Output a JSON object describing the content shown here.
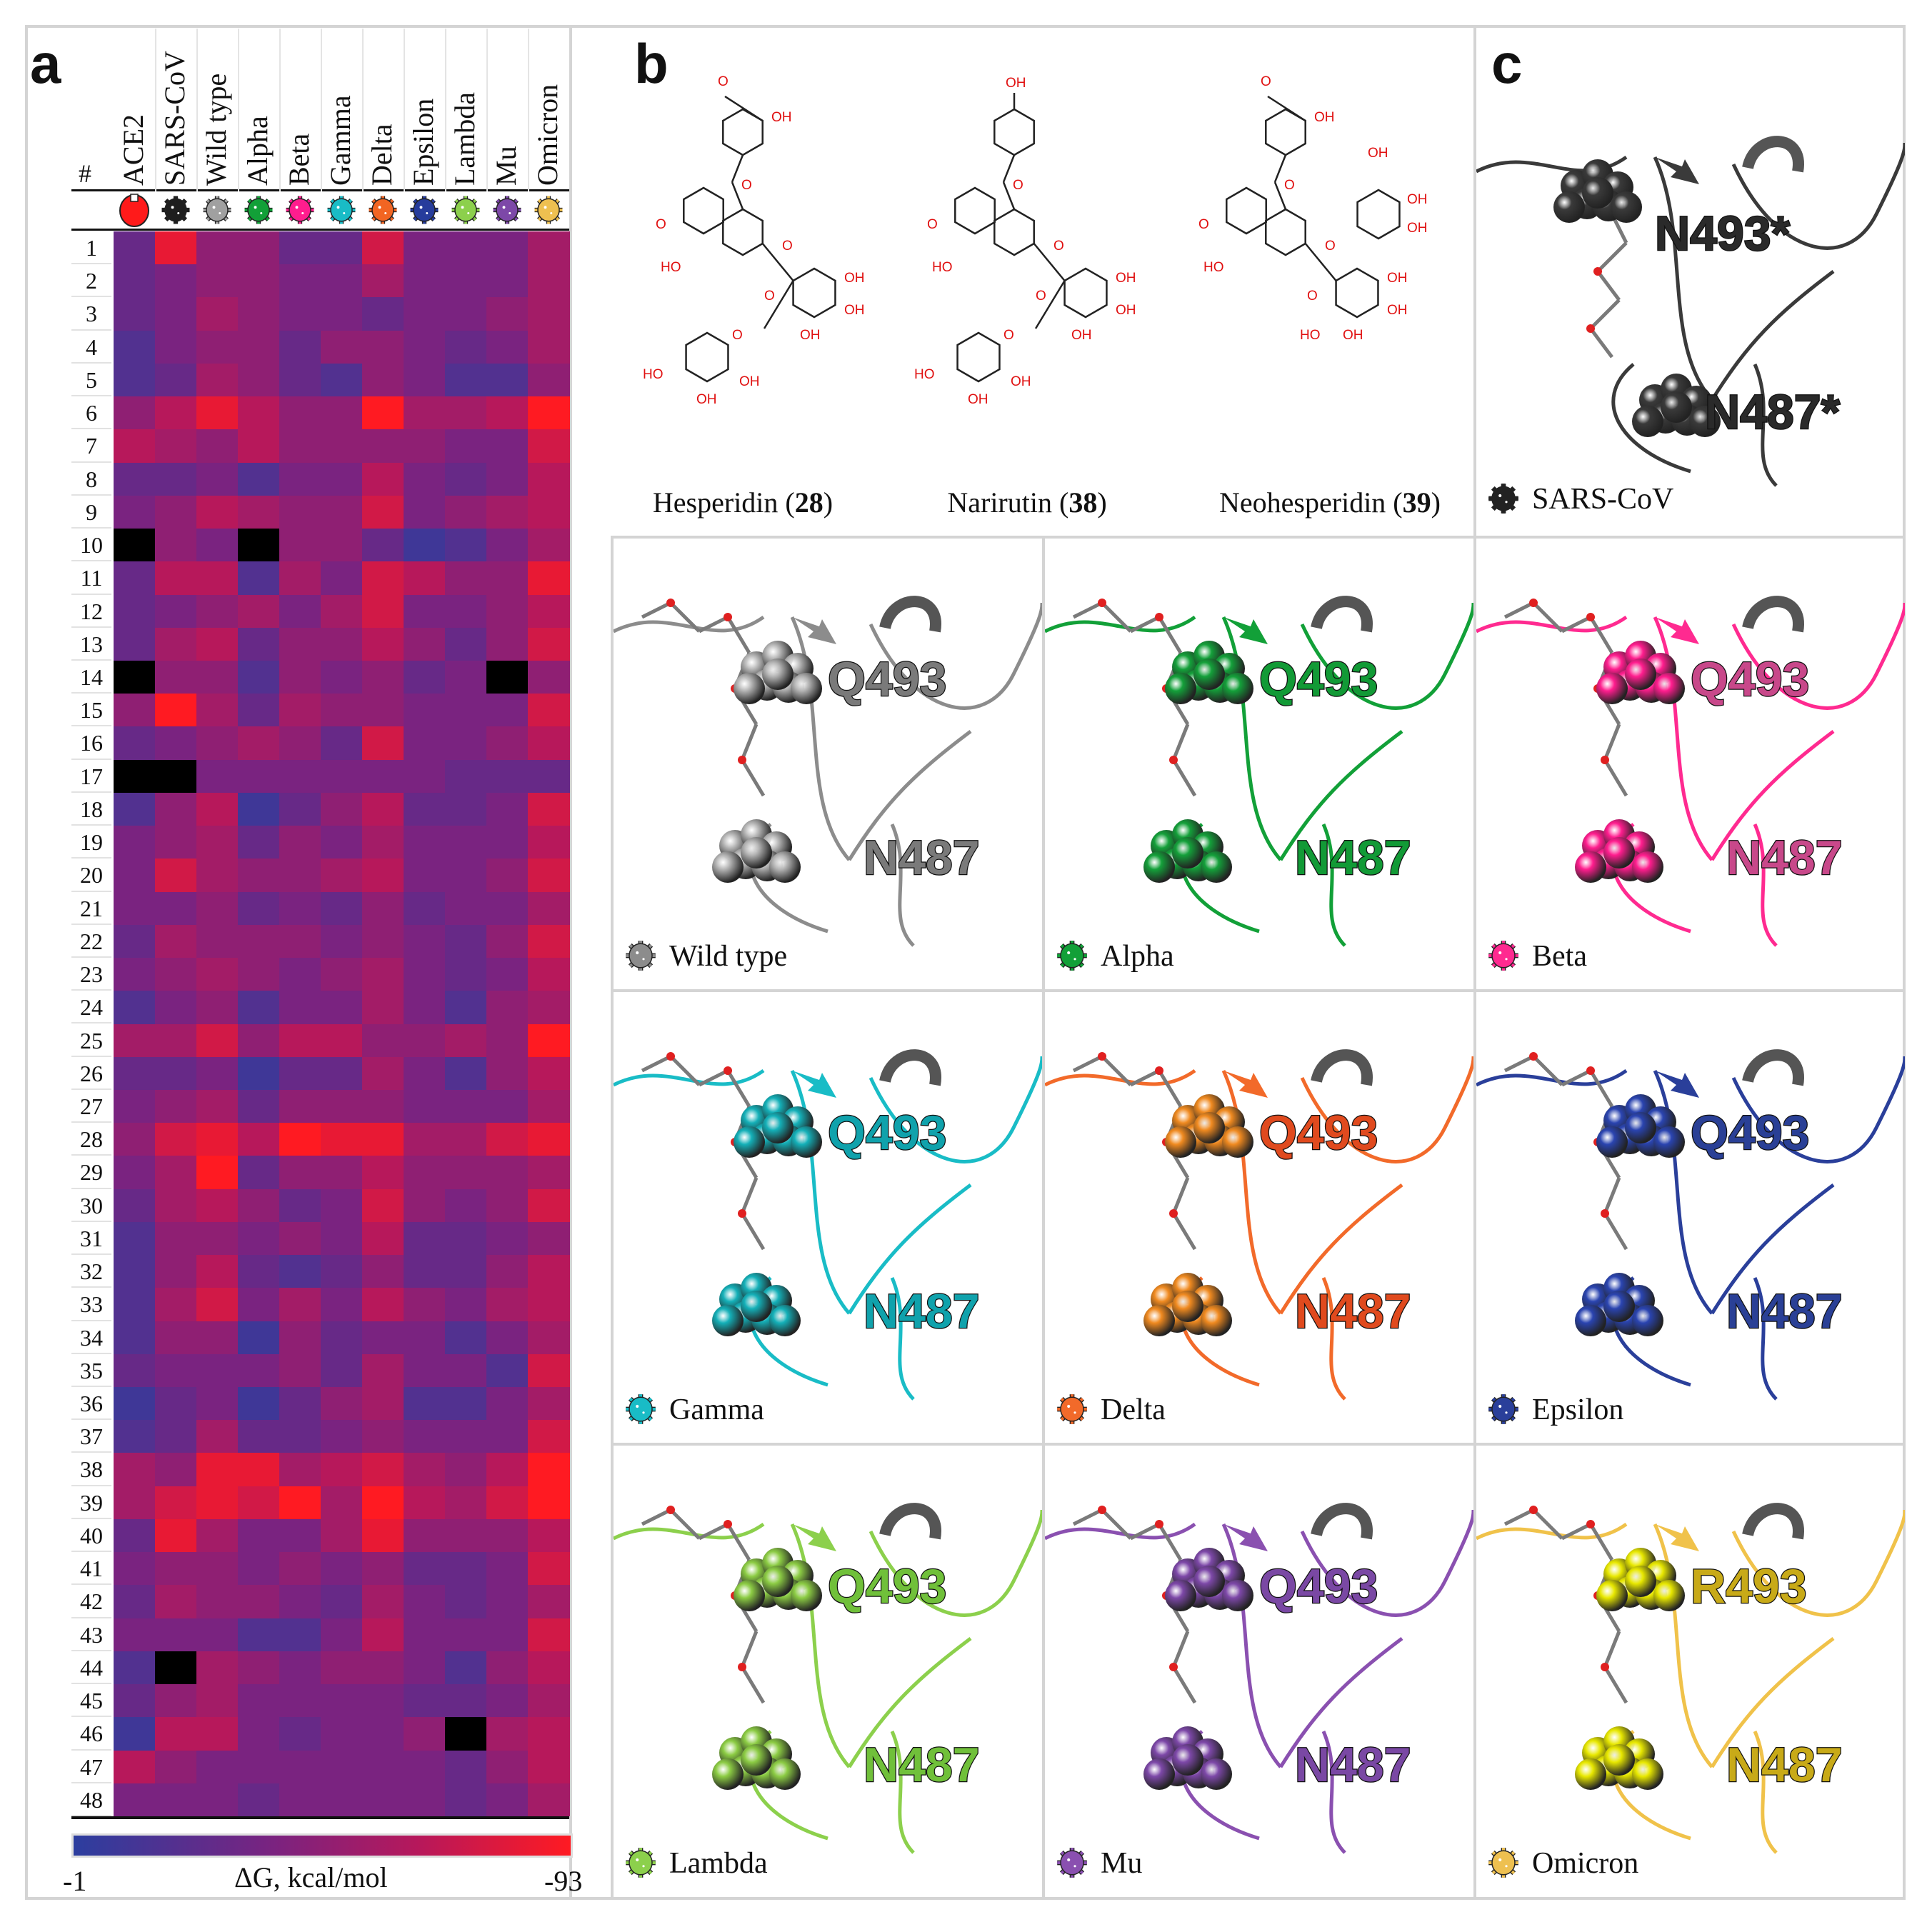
{
  "panel_letters": {
    "a": "a",
    "b": "b",
    "c": "c"
  },
  "chart_data": {
    "type": "heatmap",
    "title": "",
    "row_header": "#",
    "columns": [
      {
        "name": "ACE2",
        "color": "#ff1a1a",
        "icon": "receptor-icon"
      },
      {
        "name": "SARS-CoV",
        "color": "#1e1e1e",
        "icon": "virus-icon"
      },
      {
        "name": "Wild type",
        "color": "#a0a0a0",
        "icon": "virus-icon"
      },
      {
        "name": "Alpha",
        "color": "#12a038",
        "icon": "virus-icon"
      },
      {
        "name": "Beta",
        "color": "#ff1d8e",
        "icon": "virus-icon"
      },
      {
        "name": "Gamma",
        "color": "#19bcc6",
        "icon": "virus-icon"
      },
      {
        "name": "Delta",
        "color": "#f26522",
        "icon": "virus-icon"
      },
      {
        "name": "Epsilon",
        "color": "#263c9c",
        "icon": "virus-icon"
      },
      {
        "name": "Lambda",
        "color": "#8cd04c",
        "icon": "virus-icon"
      },
      {
        "name": "Mu",
        "color": "#7d48a8",
        "icon": "virus-icon"
      },
      {
        "name": "Omicron",
        "color": "#eec050",
        "icon": "virus-icon"
      }
    ],
    "rows": [
      "1",
      "2",
      "3",
      "4",
      "5",
      "6",
      "7",
      "8",
      "9",
      "10",
      "11",
      "12",
      "13",
      "14",
      "15",
      "16",
      "17",
      "18",
      "19",
      "20",
      "21",
      "22",
      "23",
      "24",
      "25",
      "26",
      "27",
      "28",
      "29",
      "30",
      "31",
      "32",
      "33",
      "34",
      "35",
      "36",
      "37",
      "38",
      "39",
      "40",
      "41",
      "42",
      "43",
      "44",
      "45",
      "46",
      "47",
      "48"
    ],
    "values": [
      [
        -29,
        -84,
        -47,
        -47,
        -29,
        -29,
        -75,
        -38,
        -38,
        -38,
        -56
      ],
      [
        -29,
        -38,
        -47,
        -47,
        -38,
        -38,
        -56,
        -38,
        -38,
        -38,
        -56
      ],
      [
        -29,
        -38,
        -56,
        -47,
        -38,
        -38,
        -29,
        -38,
        -38,
        -47,
        -56
      ],
      [
        -19,
        -38,
        -47,
        -47,
        -29,
        -47,
        -47,
        -38,
        -29,
        -38,
        -56
      ],
      [
        -19,
        -29,
        -56,
        -47,
        -29,
        -19,
        -47,
        -38,
        -19,
        -19,
        -47
      ],
      [
        -47,
        -65,
        -84,
        -65,
        -47,
        -47,
        -93,
        -56,
        -56,
        -65,
        -93
      ],
      [
        -65,
        -56,
        -47,
        -65,
        -47,
        -47,
        -47,
        -47,
        -38,
        -38,
        -75
      ],
      [
        -29,
        -29,
        -38,
        -19,
        -38,
        -38,
        -65,
        -38,
        -29,
        -38,
        -65
      ],
      [
        -38,
        -47,
        -65,
        -56,
        -47,
        -47,
        -75,
        -38,
        -47,
        -56,
        -65
      ],
      [
        null,
        -47,
        -38,
        null,
        -47,
        -47,
        -29,
        -10,
        -19,
        -38,
        -56
      ],
      [
        -29,
        -65,
        -65,
        -19,
        -56,
        -38,
        -75,
        -65,
        -47,
        -47,
        -84
      ],
      [
        -29,
        -38,
        -47,
        -56,
        -38,
        -56,
        -75,
        -38,
        -38,
        -47,
        -65
      ],
      [
        -29,
        -56,
        -65,
        -29,
        -47,
        -47,
        -65,
        -47,
        -29,
        -47,
        -75
      ],
      [
        null,
        -47,
        -47,
        -19,
        -47,
        -38,
        -47,
        -29,
        -38,
        null,
        -47
      ],
      [
        -47,
        -93,
        -56,
        -29,
        -56,
        -47,
        -47,
        -38,
        -38,
        -38,
        -75
      ],
      [
        -29,
        -38,
        -47,
        -56,
        -47,
        -29,
        -75,
        -38,
        -38,
        -47,
        -65
      ],
      [
        null,
        null,
        -38,
        -38,
        -38,
        -38,
        -38,
        -38,
        -29,
        -29,
        -29
      ],
      [
        -19,
        -47,
        -65,
        -10,
        -29,
        -47,
        -65,
        -29,
        -29,
        -38,
        -75
      ],
      [
        -38,
        -47,
        -56,
        -29,
        -47,
        -38,
        -56,
        -38,
        -38,
        -38,
        -65
      ],
      [
        -38,
        -75,
        -56,
        -47,
        -47,
        -56,
        -65,
        -38,
        -38,
        -47,
        -75
      ],
      [
        -38,
        -38,
        -47,
        -29,
        -38,
        -29,
        -47,
        -29,
        -38,
        -38,
        -56
      ],
      [
        -29,
        -56,
        -47,
        -47,
        -47,
        -38,
        -47,
        -38,
        -29,
        -47,
        -75
      ],
      [
        -38,
        -47,
        -56,
        -47,
        -38,
        -47,
        -56,
        -38,
        -29,
        -38,
        -65
      ],
      [
        -19,
        -38,
        -47,
        -19,
        -38,
        -38,
        -56,
        -38,
        -19,
        -47,
        -56
      ],
      [
        -56,
        -56,
        -75,
        -47,
        -65,
        -65,
        -47,
        -47,
        -56,
        -47,
        -93
      ],
      [
        -29,
        -29,
        -38,
        -10,
        -29,
        -29,
        -56,
        -38,
        -19,
        -47,
        -65
      ],
      [
        -38,
        -47,
        -56,
        -29,
        -47,
        -47,
        -47,
        -38,
        -38,
        -38,
        -56
      ],
      [
        -47,
        -75,
        -84,
        -65,
        -93,
        -84,
        -84,
        -56,
        -56,
        -75,
        -84
      ],
      [
        -38,
        -56,
        -93,
        -29,
        -47,
        -47,
        -65,
        -47,
        -47,
        -47,
        -56
      ],
      [
        -29,
        -56,
        -65,
        -47,
        -29,
        -38,
        -75,
        -47,
        -38,
        -47,
        -75
      ],
      [
        -19,
        -47,
        -47,
        -38,
        -47,
        -38,
        -65,
        -29,
        -29,
        -38,
        -47
      ],
      [
        -19,
        -47,
        -65,
        -29,
        -19,
        -29,
        -47,
        -29,
        -29,
        -47,
        -65
      ],
      [
        -19,
        -56,
        -75,
        -38,
        -56,
        -38,
        -65,
        -47,
        -38,
        -56,
        -65
      ],
      [
        -19,
        -47,
        -47,
        -10,
        -47,
        -29,
        -38,
        -38,
        -19,
        -38,
        -56
      ],
      [
        -29,
        -38,
        -38,
        -38,
        -47,
        -29,
        -56,
        -38,
        -38,
        -19,
        -75
      ],
      [
        -10,
        -29,
        -38,
        -10,
        -29,
        -47,
        -56,
        -19,
        -19,
        -38,
        -56
      ],
      [
        -19,
        -29,
        -56,
        -29,
        -29,
        -38,
        -47,
        -38,
        -38,
        -38,
        -75
      ],
      [
        -56,
        -47,
        -84,
        -84,
        -56,
        -65,
        -75,
        -56,
        -47,
        -65,
        -93
      ],
      [
        -56,
        -75,
        -84,
        -75,
        -93,
        -56,
        -93,
        -65,
        -56,
        -75,
        -93
      ],
      [
        -29,
        -84,
        -56,
        -38,
        -38,
        -56,
        -84,
        -47,
        -47,
        -47,
        -65
      ],
      [
        -38,
        -47,
        -47,
        -38,
        -47,
        -38,
        -47,
        -29,
        -29,
        -38,
        -75
      ],
      [
        -29,
        -56,
        -47,
        -47,
        -38,
        -29,
        -56,
        -38,
        -29,
        -38,
        -56
      ],
      [
        -38,
        -38,
        -38,
        -19,
        -19,
        -38,
        -65,
        -38,
        -38,
        -38,
        -75
      ],
      [
        -19,
        null,
        -56,
        -47,
        -38,
        -47,
        -47,
        -38,
        -19,
        -47,
        -65
      ],
      [
        -29,
        -47,
        -56,
        -38,
        -38,
        -38,
        -38,
        -29,
        -29,
        -38,
        -56
      ],
      [
        -10,
        -65,
        -65,
        -38,
        -29,
        -38,
        -38,
        -47,
        null,
        -56,
        -65
      ],
      [
        -65,
        -47,
        -38,
        -38,
        -38,
        -38,
        -38,
        -38,
        -29,
        -47,
        -65
      ],
      [
        -38,
        -38,
        -38,
        -29,
        -38,
        -38,
        -38,
        -38,
        -29,
        -38,
        -56
      ]
    ],
    "missing_color": "#000000",
    "colorbar": {
      "label": "ΔG, kcal/mol",
      "min_label": "-1",
      "max_label": "-93",
      "range": [
        -1,
        -93
      ],
      "colors": [
        "#2c3e9f",
        "#7a2380",
        "#b8185a",
        "#ff1a22"
      ]
    }
  },
  "structures": [
    {
      "name": "Hesperidin",
      "number": "28"
    },
    {
      "name": "Narirutin",
      "number": "38"
    },
    {
      "name": "Neohesperidin",
      "number": "39"
    }
  ],
  "chem_labels": {
    "oh": "OH",
    "ho": "HO",
    "o": "O"
  },
  "sars_panel": {
    "name": "SARS-CoV",
    "color": "#3a3a3a",
    "label_color": "#2a2a2a",
    "top_label": "N493*",
    "bottom_label": "N487*"
  },
  "panels": [
    {
      "name": "Wild type",
      "color": "#8c8c8c",
      "sphere": "#b4b4b4",
      "label_color": "#7a7a7a",
      "top_label": "Q493",
      "bottom_label": "N487"
    },
    {
      "name": "Alpha",
      "color": "#12a038",
      "sphere": "#14a03a",
      "label_color": "#129a36",
      "top_label": "Q493",
      "bottom_label": "N487"
    },
    {
      "name": "Beta",
      "color": "#ff2a90",
      "sphere": "#ff1d8e",
      "label_color": "#c8488a",
      "top_label": "Q493",
      "bottom_label": "N487"
    },
    {
      "name": "Gamma",
      "color": "#19bcc6",
      "sphere": "#14b0b8",
      "label_color": "#10a2ac",
      "top_label": "Q493",
      "bottom_label": "N487"
    },
    {
      "name": "Delta",
      "color": "#f26a2a",
      "sphere": "#f08a20",
      "label_color": "#e04a1e",
      "top_label": "Q493",
      "bottom_label": "N487"
    },
    {
      "name": "Epsilon",
      "color": "#2a3f9a",
      "sphere": "#2a44b0",
      "label_color": "#2a4096",
      "top_label": "Q493",
      "bottom_label": "N487"
    },
    {
      "name": "Lambda",
      "color": "#8cd04c",
      "sphere": "#8ccc44",
      "label_color": "#70c03a",
      "top_label": "Q493",
      "bottom_label": "N487"
    },
    {
      "name": "Mu",
      "color": "#8a50b0",
      "sphere": "#7d48a8",
      "label_color": "#7a48a4",
      "top_label": "Q493",
      "bottom_label": "N487"
    },
    {
      "name": "Omicron",
      "color": "#f0c24a",
      "sphere": "#e8e800",
      "label_color": "#c8aa18",
      "top_label": "R493",
      "bottom_label": "N487"
    }
  ]
}
